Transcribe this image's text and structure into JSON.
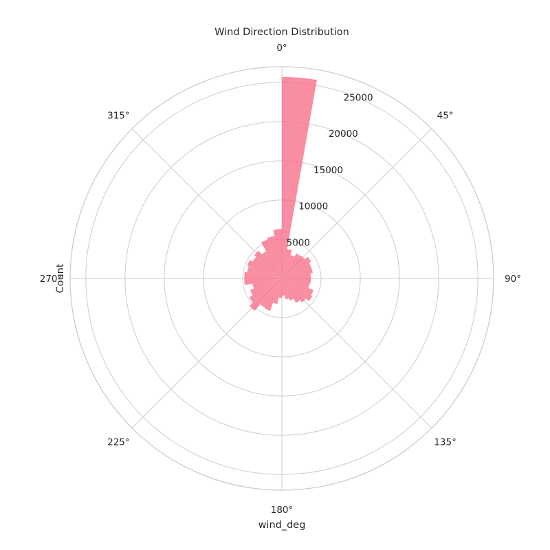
{
  "chart_data": {
    "type": "polar-bar",
    "title": "Wind Direction Distribution",
    "xlabel": "wind_deg",
    "ylabel": "Count",
    "angle_ticks": [
      {
        "deg": 0,
        "label": "0°"
      },
      {
        "deg": 45,
        "label": "45°"
      },
      {
        "deg": 90,
        "label": "90°"
      },
      {
        "deg": 135,
        "label": "135°"
      },
      {
        "deg": 180,
        "label": "180°"
      },
      {
        "deg": 225,
        "label": "225°"
      },
      {
        "deg": 270,
        "label": "270°"
      },
      {
        "deg": 315,
        "label": "315°"
      }
    ],
    "radial_ticks": [
      {
        "value": 5000,
        "label": "5000"
      },
      {
        "value": 10000,
        "label": "10000"
      },
      {
        "value": 15000,
        "label": "15000"
      },
      {
        "value": 20000,
        "label": "20000"
      },
      {
        "value": 25000,
        "label": "25000"
      }
    ],
    "rlim": [
      0,
      27000
    ],
    "bin_width_deg": 10,
    "bin_start_deg": [
      0,
      10,
      20,
      30,
      40,
      50,
      60,
      70,
      80,
      90,
      100,
      110,
      120,
      130,
      140,
      150,
      160,
      170,
      180,
      190,
      200,
      210,
      220,
      230,
      240,
      250,
      260,
      270,
      280,
      290,
      300,
      310,
      320,
      330,
      340,
      350
    ],
    "values": [
      25700,
      3800,
      3200,
      3700,
      3800,
      4300,
      4000,
      4000,
      3700,
      3700,
      3600,
      4300,
      4500,
      4000,
      3600,
      3000,
      2700,
      2200,
      2500,
      3300,
      4400,
      4300,
      5400,
      4800,
      4300,
      3800,
      4800,
      4800,
      4500,
      4700,
      4300,
      4600,
      4000,
      5300,
      5500,
      6300
    ],
    "bar_color": "#f77189",
    "grid": true
  }
}
